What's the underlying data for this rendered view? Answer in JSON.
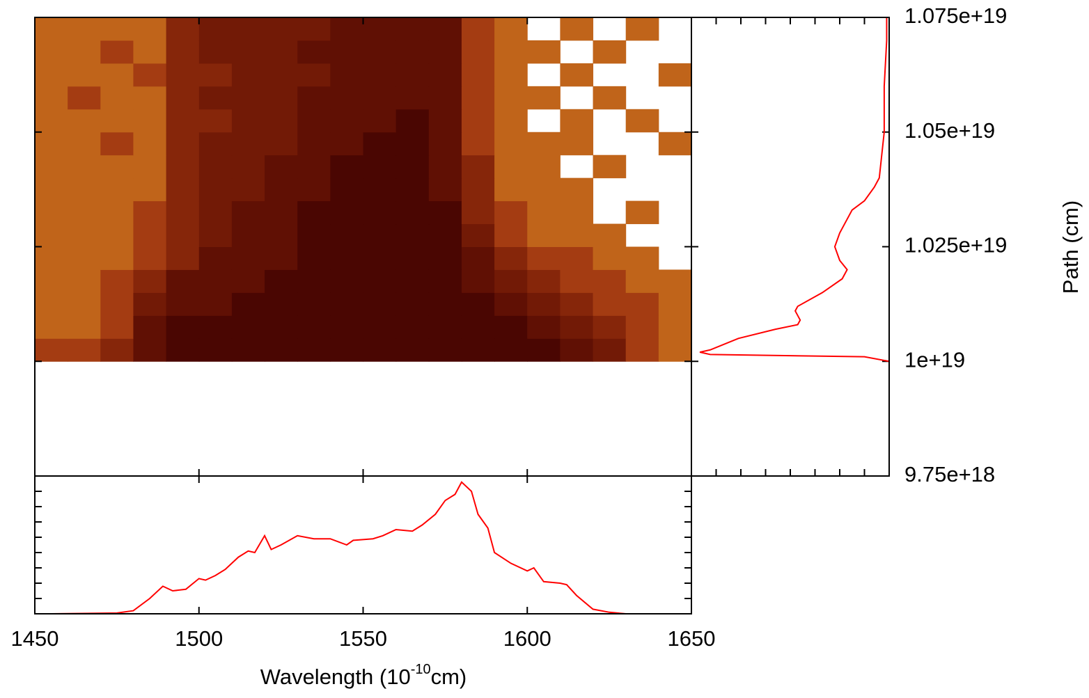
{
  "chart_data": [
    {
      "type": "heatmap",
      "x_edges": [
        1450,
        1460,
        1470,
        1480,
        1490,
        1500,
        1510,
        1520,
        1530,
        1540,
        1550,
        1560,
        1570,
        1580,
        1590,
        1600,
        1610,
        1620,
        1630,
        1640,
        1650
      ],
      "y_edges": [
        1e+19,
        1.005e+19,
        1.01e+19,
        1.015e+19,
        1.02e+19,
        1.025e+19,
        1.03e+19,
        1.035e+19,
        1.04e+19,
        1.045e+19,
        1.05e+19,
        1.055e+19,
        1.06e+19,
        1.065e+19,
        1.07e+19,
        1.075e+19
      ],
      "z": [
        [
          2,
          2,
          3,
          5,
          6,
          6,
          6,
          6,
          6,
          6,
          6,
          6,
          6,
          6,
          6,
          6,
          5,
          4,
          2,
          1
        ],
        [
          1,
          1,
          2,
          5,
          6,
          6,
          6,
          6,
          6,
          6,
          6,
          6,
          6,
          6,
          6,
          5,
          4,
          3,
          2,
          1
        ],
        [
          1,
          1,
          2,
          4,
          5,
          5,
          6,
          6,
          6,
          6,
          6,
          6,
          6,
          6,
          5,
          4,
          3,
          2,
          2,
          1
        ],
        [
          1,
          1,
          2,
          3,
          5,
          5,
          5,
          6,
          6,
          6,
          6,
          6,
          6,
          5,
          4,
          3,
          2,
          2,
          1,
          1
        ],
        [
          1,
          1,
          1,
          2,
          3,
          5,
          5,
          5,
          6,
          6,
          6,
          6,
          6,
          5,
          3,
          2,
          2,
          1,
          1,
          0
        ],
        [
          1,
          1,
          1,
          2,
          3,
          4,
          5,
          5,
          6,
          6,
          6,
          6,
          6,
          4,
          2,
          1,
          1,
          1,
          0,
          0
        ],
        [
          1,
          1,
          1,
          2,
          3,
          4,
          5,
          5,
          6,
          6,
          6,
          6,
          6,
          3,
          2,
          1,
          1,
          0,
          1,
          0
        ],
        [
          1,
          1,
          1,
          1,
          3,
          4,
          4,
          5,
          5,
          6,
          6,
          6,
          5,
          3,
          1,
          1,
          1,
          0,
          0,
          0
        ],
        [
          1,
          1,
          1,
          1,
          3,
          4,
          4,
          5,
          5,
          6,
          6,
          6,
          5,
          3,
          1,
          1,
          0,
          1,
          0,
          0
        ],
        [
          1,
          1,
          2,
          1,
          3,
          4,
          4,
          4,
          5,
          5,
          6,
          6,
          5,
          2,
          1,
          1,
          1,
          0,
          0,
          1
        ],
        [
          1,
          1,
          1,
          1,
          3,
          3,
          4,
          4,
          5,
          5,
          5,
          6,
          5,
          2,
          1,
          0,
          1,
          0,
          1,
          0
        ],
        [
          1,
          2,
          1,
          1,
          3,
          4,
          4,
          4,
          5,
          5,
          5,
          5,
          5,
          2,
          1,
          1,
          0,
          1,
          0,
          0
        ],
        [
          1,
          1,
          1,
          2,
          3,
          3,
          4,
          4,
          4,
          5,
          5,
          5,
          5,
          2,
          1,
          0,
          1,
          0,
          0,
          1
        ],
        [
          1,
          1,
          2,
          1,
          3,
          4,
          4,
          4,
          5,
          5,
          5,
          5,
          5,
          2,
          1,
          1,
          0,
          1,
          0,
          0
        ],
        [
          1,
          1,
          1,
          1,
          3,
          4,
          4,
          4,
          4,
          5,
          5,
          5,
          5,
          2,
          1,
          0,
          1,
          0,
          1,
          0
        ]
      ],
      "palette": [
        "#ffffff",
        "#c0641a",
        "#a43c12",
        "#86260a",
        "#721a06",
        "#601004",
        "#4a0602"
      ],
      "xlim": [
        1450,
        1650
      ],
      "xticks": [
        1500,
        1550,
        1600
      ],
      "ylim": [
        9.75e+18,
        1.075e+19
      ],
      "yticks": [
        {
          "value": 9.75e+18,
          "label": "9.75e+18"
        },
        {
          "value": 1e+19,
          "label": "1e+19"
        },
        {
          "value": 1.025e+19,
          "label": "1.025e+19"
        },
        {
          "value": 1.05e+19,
          "label": "1.05e+19"
        },
        {
          "value": 1.075e+19,
          "label": "1.075e+19"
        }
      ],
      "ylabel": "Path (cm)"
    },
    {
      "type": "line",
      "xlabel_parts": [
        "Wavelength (10",
        "-10",
        "cm)"
      ],
      "x": [
        1455,
        1475,
        1480,
        1485,
        1489,
        1492,
        1496,
        1500,
        1502,
        1505,
        1508,
        1512,
        1515,
        1517,
        1520,
        1522,
        1525,
        1530,
        1535,
        1540,
        1545,
        1547,
        1553,
        1556,
        1560,
        1565,
        1568,
        1572,
        1575,
        1578,
        1580,
        1583,
        1585,
        1588,
        1590,
        1595,
        1600,
        1602,
        1605,
        1610,
        1612,
        1615,
        1620,
        1625,
        1630
      ],
      "series": [
        {
          "color": "#ff0000",
          "values": [
            0,
            0.05,
            0.2,
            1.0,
            1.8,
            1.5,
            1.6,
            2.3,
            2.2,
            2.5,
            2.9,
            3.7,
            4.1,
            4.0,
            5.1,
            4.2,
            4.5,
            5.1,
            4.9,
            4.9,
            4.5,
            4.8,
            4.9,
            5.1,
            5.5,
            5.4,
            5.8,
            6.5,
            7.4,
            7.8,
            8.6,
            8.0,
            6.5,
            5.6,
            4.0,
            3.3,
            2.8,
            3.0,
            2.1,
            2.0,
            1.9,
            1.2,
            0.3,
            0.1,
            0
          ]
        }
      ],
      "xlim": [
        1450,
        1650
      ],
      "xticks": [
        1450,
        1500,
        1550,
        1600,
        1650
      ],
      "ylim": [
        0,
        9
      ],
      "yticks": [
        1,
        2,
        3,
        4,
        5,
        6,
        7,
        8
      ]
    },
    {
      "type": "hline",
      "y": [
        1e+19,
        1.001e+19,
        1.0015e+19,
        1.002e+19,
        1.0025e+19,
        1.005e+19,
        1.007e+19,
        1.008e+19,
        1.009e+19,
        1.011e+19,
        1.012e+19,
        1.015e+19,
        1.018e+19,
        1.02e+19,
        1.022e+19,
        1.025e+19,
        1.028e+19,
        1.03e+19,
        1.033e+19,
        1.035e+19,
        1.038e+19,
        1.04e+19,
        1.045e+19,
        1.05e+19,
        1.06e+19,
        1.07e+19,
        1.075e+19
      ],
      "series": [
        {
          "color": "#ff0000",
          "values": [
            8.0,
            7.0,
            0.76,
            0.34,
            0.76,
            1.9,
            3.4,
            4.3,
            4.4,
            4.2,
            4.3,
            5.3,
            6.1,
            6.3,
            6.0,
            5.8,
            6.0,
            6.2,
            6.5,
            7.0,
            7.4,
            7.6,
            7.7,
            7.8,
            7.8,
            7.9,
            7.9
          ]
        }
      ],
      "ylim": [
        9.75e+18,
        1.075e+19
      ],
      "xlim": [
        0,
        8
      ],
      "xticks": [
        1,
        2,
        3,
        4,
        5,
        6,
        7
      ]
    }
  ]
}
